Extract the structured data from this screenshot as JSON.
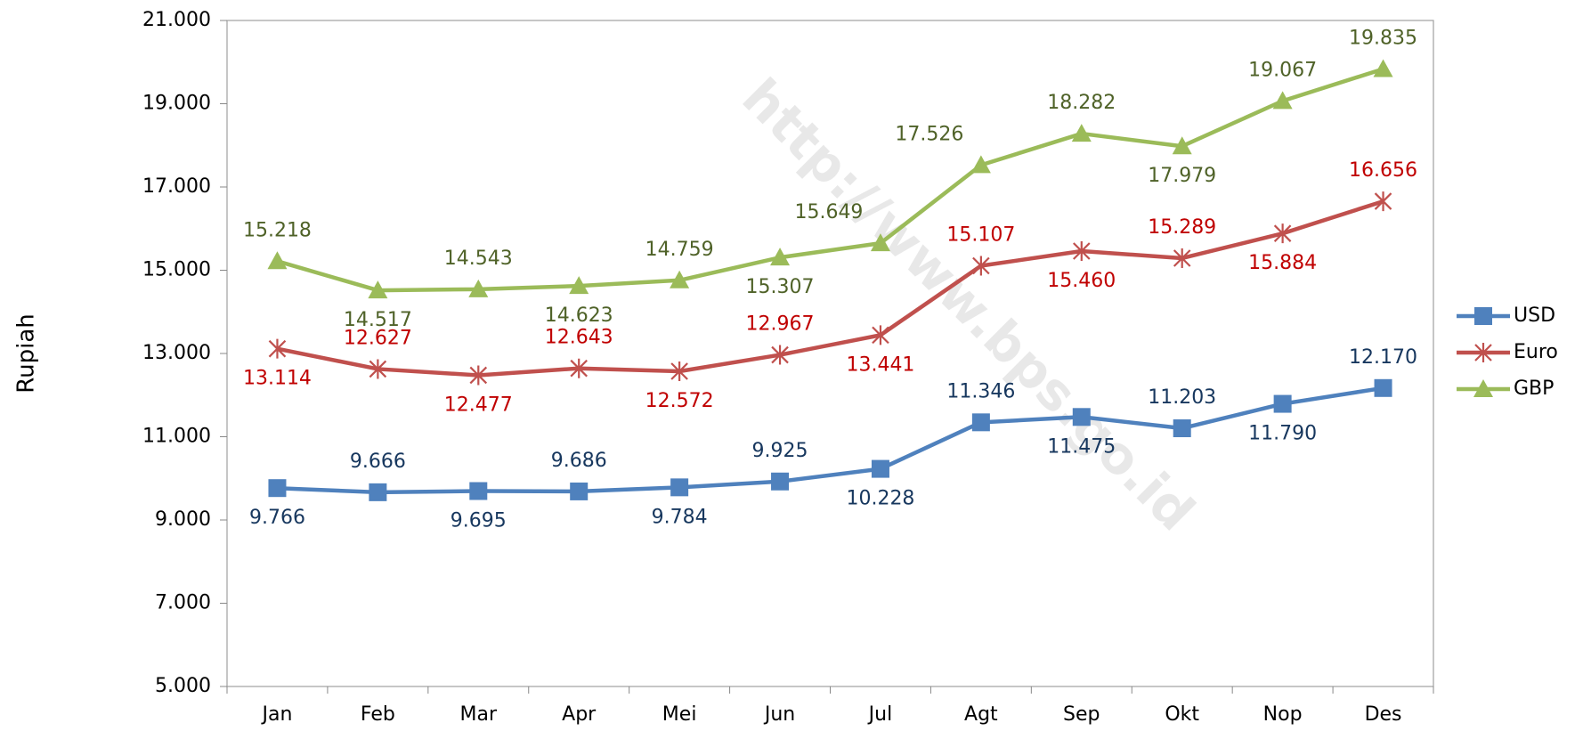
{
  "chart_data": {
    "type": "line",
    "y_label": "Rupiah",
    "watermark": "http://www.bps.go.id",
    "categories": [
      "Jan",
      "Feb",
      "Mar",
      "Apr",
      "Mei",
      "Jun",
      "Jul",
      "Agt",
      "Sep",
      "Okt",
      "Nop",
      "Des"
    ],
    "ylim": [
      5000,
      21000
    ],
    "yticks": [
      {
        "value": 5000,
        "label": "5.000"
      },
      {
        "value": 7000,
        "label": "7.000"
      },
      {
        "value": 9000,
        "label": "9.000"
      },
      {
        "value": 11000,
        "label": "11.000"
      },
      {
        "value": 13000,
        "label": "13.000"
      },
      {
        "value": 15000,
        "label": "15.000"
      },
      {
        "value": 17000,
        "label": "17.000"
      },
      {
        "value": 19000,
        "label": "19.000"
      },
      {
        "value": 21000,
        "label": "21.000"
      }
    ],
    "legend": "right",
    "series": [
      {
        "name": "USD",
        "color": "#4f81bd",
        "label_color": "#17375e",
        "marker": "square",
        "values": [
          9766,
          9666,
          9695,
          9686,
          9784,
          9925,
          10228,
          11346,
          11475,
          11203,
          11790,
          12170
        ],
        "value_labels": [
          "9.766",
          "9.666",
          "9.695",
          "9.686",
          "9.784",
          "9.925",
          "10.228",
          "11.346",
          "11.475",
          "11.203",
          "11.790",
          "12.170"
        ]
      },
      {
        "name": "Euro",
        "color": "#c0504d",
        "label_color": "#c00000",
        "marker": "star",
        "values": [
          13114,
          12627,
          12477,
          12643,
          12572,
          12967,
          13441,
          15107,
          15460,
          15289,
          15884,
          16656
        ],
        "value_labels": [
          "13.114",
          "12.627",
          "12.477",
          "12.643",
          "12.572",
          "12.967",
          "13.441",
          "15.107",
          "15.460",
          "15.289",
          "15.884",
          "16.656"
        ]
      },
      {
        "name": "GBP",
        "color": "#9bbb59",
        "label_color": "#4f6228",
        "marker": "triangle",
        "values": [
          15218,
          14517,
          14543,
          14623,
          14759,
          15307,
          15649,
          17526,
          18282,
          17979,
          19067,
          19835
        ],
        "value_labels": [
          "15.218",
          "14.517",
          "14.543",
          "14.623",
          "14.759",
          "15.307",
          "15.649",
          "17.526",
          "18.282",
          "17.979",
          "19.067",
          "19.835"
        ]
      }
    ]
  }
}
